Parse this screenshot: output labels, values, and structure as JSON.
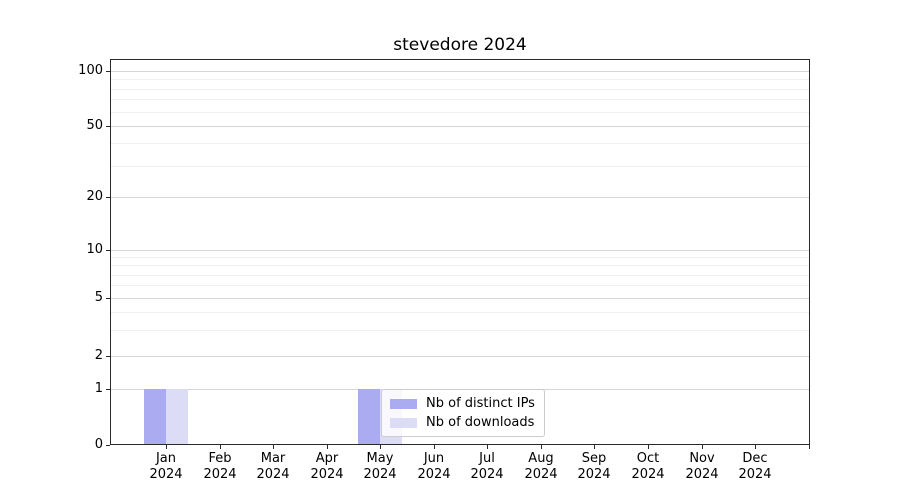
{
  "title": "stevedore 2024",
  "colors": {
    "bar_distinct_ips": "#ababf2",
    "bar_downloads": "#dcdcf7",
    "grid_major": "#d6d6d6",
    "grid_minor": "#f0f0f0",
    "axis": "#2a2a2a",
    "legend_border": "#cccccc",
    "text": "#000000"
  },
  "chart_data": {
    "type": "bar",
    "title": "stevedore 2024",
    "categories": [
      {
        "month": "Jan",
        "year": "2024"
      },
      {
        "month": "Feb",
        "year": "2024"
      },
      {
        "month": "Mar",
        "year": "2024"
      },
      {
        "month": "Apr",
        "year": "2024"
      },
      {
        "month": "May",
        "year": "2024"
      },
      {
        "month": "Jun",
        "year": "2024"
      },
      {
        "month": "Jul",
        "year": "2024"
      },
      {
        "month": "Aug",
        "year": "2024"
      },
      {
        "month": "Sep",
        "year": "2024"
      },
      {
        "month": "Oct",
        "year": "2024"
      },
      {
        "month": "Nov",
        "year": "2024"
      },
      {
        "month": "Dec",
        "year": "2024"
      }
    ],
    "series": [
      {
        "name": "Nb of distinct IPs",
        "color": "#ababf2",
        "values": [
          1,
          0,
          0,
          0,
          1,
          0,
          0,
          0,
          0,
          0,
          0,
          0
        ]
      },
      {
        "name": "Nb of downloads",
        "color": "#dcdcf7",
        "values": [
          1,
          0,
          0,
          0,
          1,
          0,
          0,
          0,
          0,
          0,
          0,
          0
        ]
      }
    ],
    "yscale": "symlog",
    "yticks": [
      0,
      1,
      2,
      5,
      10,
      20,
      50,
      100
    ],
    "yticks_minor": [
      3,
      4,
      6,
      7,
      8,
      9,
      30,
      40,
      60,
      70,
      80,
      90
    ],
    "ylim": [
      0,
      120
    ],
    "xlabel": "",
    "ylabel": "",
    "grid": true,
    "legend_position": "lower-center-inside"
  }
}
